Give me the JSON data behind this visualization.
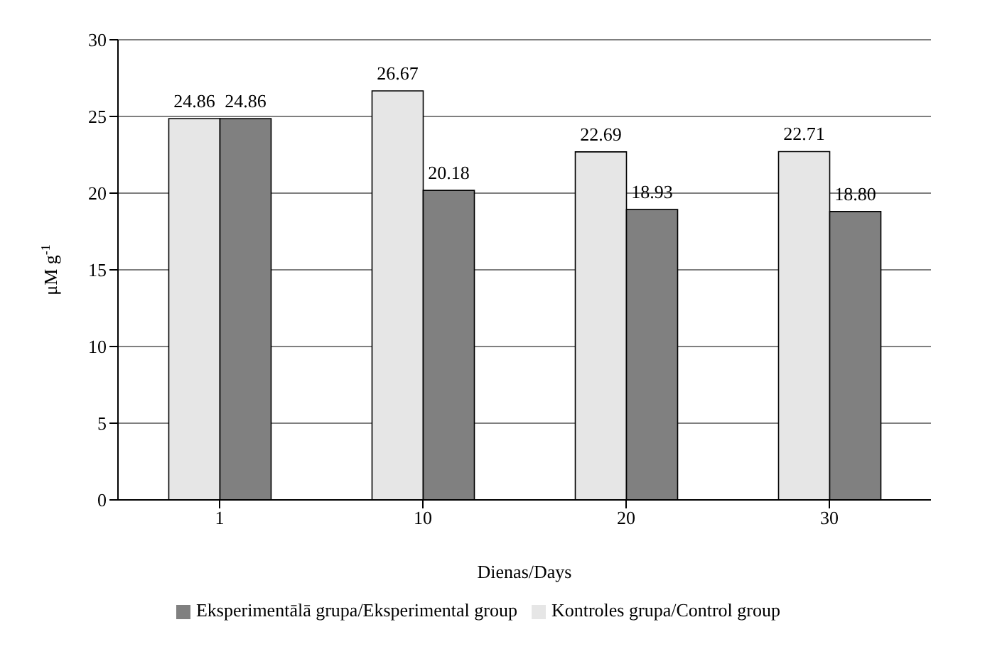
{
  "chart_data": {
    "type": "bar",
    "xlabel": "Dienas/Days",
    "ylabel": "μM g$^{-1}$",
    "categories": [
      "1",
      "10",
      "20",
      "30"
    ],
    "series": [
      {
        "name": "Kontroles grupa/Control group",
        "color": "#e6e6e6",
        "values": [
          24.86,
          26.67,
          22.69,
          22.71
        ],
        "value_labels": [
          "24.86",
          "26.67",
          "22.69",
          "22.71"
        ]
      },
      {
        "name": "Eksperimentālā grupa/Eksperimental group",
        "color": "#808080",
        "values": [
          24.86,
          20.18,
          18.93,
          18.8
        ],
        "value_labels": [
          "24.86",
          "20.18",
          "18.93",
          "18.80"
        ]
      }
    ],
    "ylim": [
      0,
      30
    ],
    "yticks": [
      0,
      5,
      10,
      15,
      20,
      25,
      30
    ],
    "grid": "y",
    "legend": "bottom"
  }
}
